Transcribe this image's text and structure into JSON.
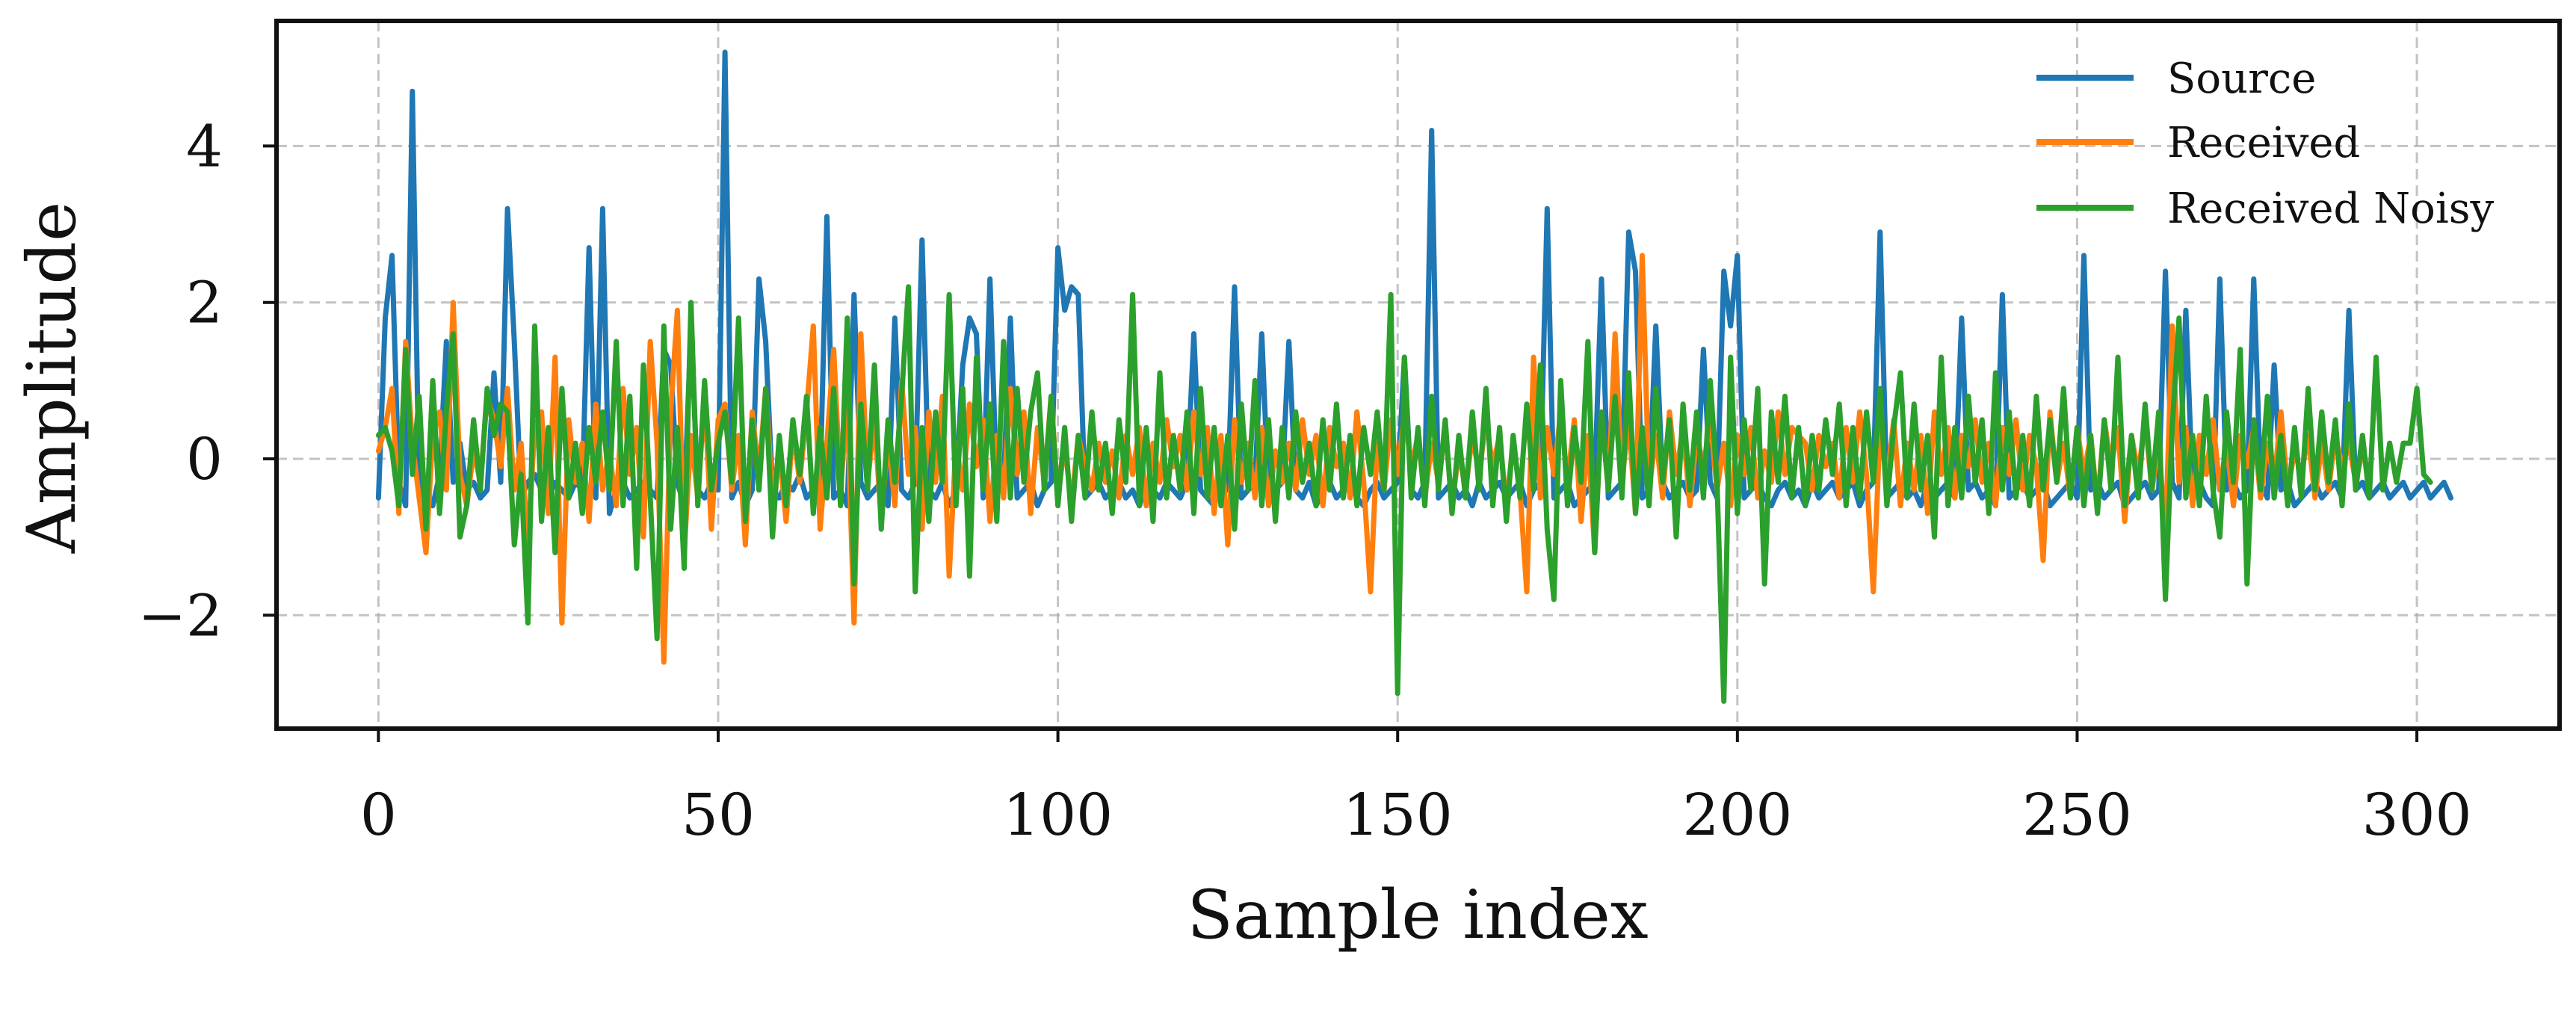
{
  "chart_data": {
    "type": "line",
    "title": "",
    "xlabel": "Sample index",
    "ylabel": "Amplitude",
    "xlim": [
      -15,
      321
    ],
    "ylim": [
      -3.45,
      5.6
    ],
    "xticks": [
      0,
      50,
      100,
      150,
      200,
      250,
      300
    ],
    "yticks": [
      -2,
      0,
      2,
      4
    ],
    "xtick_labels": [
      "0",
      "50",
      "100",
      "150",
      "200",
      "250",
      "300"
    ],
    "ytick_labels": [
      "−2",
      "0",
      "2",
      "4"
    ],
    "grid": true,
    "legend_position": "top-right",
    "x": {
      "start": 0,
      "end": 306,
      "step": 1
    },
    "series": [
      {
        "name": "Source",
        "color": "#1f77b4",
        "values": [
          -0.5,
          1.8,
          2.6,
          -0.3,
          -0.6,
          4.7,
          -0.5,
          -0.4,
          -0.6,
          -0.2,
          1.5,
          -0.3,
          0.2,
          -0.4,
          -0.3,
          -0.5,
          -0.4,
          1.1,
          -0.3,
          3.2,
          1.5,
          -0.5,
          -0.3,
          -0.2,
          -0.4,
          -0.5,
          -0.3,
          -0.4,
          -0.5,
          -0.3,
          -0.4,
          2.7,
          -0.5,
          3.2,
          -0.7,
          -0.4,
          -0.3,
          -0.5,
          -0.4,
          -0.3,
          -0.4,
          -0.5,
          1.4,
          1.2,
          -0.3,
          -0.6,
          1.7,
          -0.4,
          -0.5,
          -0.3,
          -0.4,
          5.2,
          -0.5,
          -0.3,
          -0.6,
          -0.4,
          2.3,
          1.5,
          -0.4,
          -0.5,
          -0.3,
          -0.4,
          -0.2,
          -0.5,
          -0.4,
          -0.3,
          3.1,
          -0.5,
          -0.4,
          -0.6,
          2.1,
          -0.3,
          -0.5,
          -0.4,
          -0.3,
          -0.6,
          1.8,
          -0.4,
          -0.5,
          -0.3,
          2.8,
          -0.4,
          -0.5,
          -0.3,
          -0.6,
          -0.4,
          1.2,
          1.8,
          1.6,
          -0.5,
          2.3,
          -0.4,
          -0.3,
          1.8,
          -0.5,
          -0.4,
          -0.3,
          -0.6,
          -0.4,
          -0.3,
          2.7,
          1.9,
          2.2,
          2.1,
          -0.5,
          -0.4,
          -0.3,
          -0.5,
          -0.4,
          -0.3,
          -0.5,
          -0.4,
          -0.6,
          -0.3,
          -0.4,
          -0.5,
          -0.3,
          -0.4,
          -0.5,
          -0.3,
          1.6,
          -0.4,
          -0.5,
          -0.6,
          -0.3,
          -0.4,
          2.2,
          -0.5,
          -0.4,
          -0.3,
          1.6,
          -0.5,
          -0.4,
          -0.3,
          1.5,
          -0.4,
          -0.5,
          -0.3,
          -0.6,
          -0.4,
          -0.3,
          -0.5,
          -0.4,
          -0.3,
          -0.5,
          -0.6,
          -0.4,
          -0.3,
          -0.5,
          -0.4,
          -0.3,
          1.3,
          -0.4,
          -0.5,
          -0.3,
          4.2,
          -0.5,
          -0.4,
          -0.3,
          -0.5,
          -0.4,
          -0.6,
          -0.3,
          -0.5,
          -0.4,
          -0.3,
          -0.5,
          -0.4,
          -0.3,
          -0.6,
          -0.4,
          -0.3,
          3.2,
          -0.5,
          -0.4,
          -0.3,
          -0.6,
          -0.5,
          -0.4,
          -0.3,
          2.3,
          -0.5,
          -0.4,
          -0.3,
          2.9,
          2.4,
          -0.5,
          -0.4,
          1.7,
          -0.3,
          -0.5,
          -0.4,
          -0.3,
          -0.5,
          -0.4,
          1.4,
          -0.3,
          -0.5,
          2.4,
          1.7,
          2.6,
          -0.5,
          -0.4,
          -0.3,
          -0.5,
          -0.6,
          -0.4,
          -0.3,
          -0.5,
          -0.4,
          -0.6,
          -0.3,
          -0.5,
          -0.4,
          -0.3,
          -0.5,
          -0.4,
          -0.3,
          -0.6,
          -0.4,
          -0.3,
          2.9,
          -0.5,
          -0.4,
          -0.3,
          -0.5,
          -0.4,
          -0.6,
          -0.3,
          -0.5,
          -0.4,
          -0.3,
          -0.5,
          1.8,
          -0.4,
          -0.3,
          -0.5,
          -0.4,
          -0.6,
          2.1,
          -0.5,
          -0.4,
          -0.3,
          -0.5,
          -0.4,
          -0.3,
          -0.6,
          -0.5,
          -0.4,
          -0.3,
          -0.5,
          2.6,
          -0.4,
          -0.3,
          -0.5,
          -0.4,
          -0.3,
          -0.6,
          -0.5,
          -0.4,
          -0.3,
          -0.5,
          -0.4,
          2.4,
          -0.3,
          -0.5,
          1.9,
          -0.4,
          -0.3,
          -0.5,
          -0.6,
          2.3,
          -0.4,
          -0.3,
          -0.5,
          -0.4,
          2.3,
          -0.3,
          -0.5,
          1.2,
          -0.4,
          -0.3,
          -0.6,
          -0.5,
          -0.4,
          -0.3,
          -0.5,
          -0.4,
          -0.3,
          -0.5,
          1.9,
          -0.4,
          -0.3,
          -0.5,
          -0.4,
          -0.3,
          -0.5,
          -0.4,
          -0.3,
          -0.5,
          -0.4,
          -0.3,
          -0.5,
          -0.4,
          -0.3,
          -0.5
        ]
      },
      {
        "name": "Received",
        "color": "#ff7f0e",
        "values": [
          0.1,
          0.4,
          0.9,
          -0.7,
          1.5,
          0.2,
          -0.5,
          -1.2,
          0.3,
          0.6,
          -0.4,
          2.0,
          -0.2,
          -0.6,
          0.1,
          -0.3,
          0.8,
          0.5,
          -0.1,
          0.9,
          -0.4,
          0.2,
          -1.1,
          0.4,
          0.6,
          -0.7,
          1.3,
          -2.1,
          0.5,
          -0.3,
          0.2,
          -0.8,
          0.7,
          -0.4,
          0.1,
          -0.6,
          0.9,
          -0.2,
          0.4,
          -1.0,
          1.5,
          0.2,
          -2.6,
          0.6,
          1.9,
          -1.2,
          0.3,
          -0.5,
          0.8,
          -0.9,
          0.5,
          0.7,
          -0.4,
          0.3,
          -1.1,
          0.6,
          -0.2,
          0.9,
          -0.5,
          0.1,
          -0.8,
          0.4,
          -0.3,
          0.6,
          1.7,
          -0.9,
          0.2,
          1.4,
          -0.4,
          0.7,
          -2.1,
          1.6,
          -0.3,
          0.5,
          -0.8,
          0.3,
          -0.6,
          1.0,
          -0.2,
          0.4,
          -0.9,
          0.6,
          -0.3,
          0.8,
          -1.5,
          0.2,
          -0.4,
          0.7,
          -0.1,
          0.5,
          -0.8,
          0.3,
          -0.5,
          0.9,
          -0.2,
          0.6,
          -0.7,
          0.4,
          -0.3,
          0.8,
          -0.5,
          0.2,
          -0.6,
          0.3,
          -0.1,
          -0.4,
          0.2,
          -0.3,
          0.1,
          -0.5,
          0.3,
          -0.2,
          0.4,
          -0.6,
          0.2,
          -0.3,
          0.5,
          -0.1,
          0.3,
          -0.4,
          0.6,
          -0.2,
          0.4,
          -0.7,
          0.3,
          -1.1,
          0.5,
          -0.3,
          0.2,
          -0.5,
          0.4,
          -0.6,
          0.1,
          -0.3,
          0.2,
          -0.4,
          0.5,
          -0.2,
          0.3,
          -0.6,
          0.4,
          -0.1,
          0.2,
          -0.5,
          0.6,
          -0.3,
          -1.7,
          0.2,
          -0.4,
          0.5,
          -0.2,
          0.6,
          -0.1,
          0.3,
          -0.5,
          0.2,
          -0.3,
          0.4,
          -0.6,
          0.1,
          -0.4,
          0.3,
          -0.2,
          0.5,
          -0.1,
          0.3,
          -0.6,
          0.2,
          -0.4,
          -1.7,
          1.3,
          -0.5,
          0.4,
          -0.2,
          0.6,
          -0.3,
          0.5,
          -0.8,
          0.3,
          -1.2,
          0.6,
          -0.4,
          1.6,
          -0.3,
          0.5,
          -0.7,
          2.6,
          -0.4,
          0.3,
          -0.5,
          0.6,
          -0.2,
          0.4,
          -0.6,
          0.3,
          -0.1,
          0.5,
          -0.4,
          0.2,
          -0.6,
          0.3,
          -0.2,
          0.4,
          -0.5,
          0.1,
          -0.3,
          0.6,
          -0.2,
          0.4,
          0.3,
          0.2,
          -0.4,
          0.3,
          -0.1,
          0.2,
          -0.5,
          0.4,
          -0.3,
          0.6,
          -0.2,
          -1.7,
          0.4,
          -0.3,
          0.5,
          -0.6,
          0.2,
          -0.4,
          0.3,
          -0.7,
          0.6,
          -0.2,
          0.4,
          -0.5,
          0.3,
          -0.1,
          0.5,
          -0.3,
          0.2,
          -0.6,
          0.4,
          -0.2,
          0.5,
          -0.4,
          0.3,
          -0.1,
          -1.3,
          0.6,
          -0.3,
          0.2,
          -0.5,
          0.4,
          -0.2,
          0.3,
          -0.6,
          0.5,
          -0.1,
          0.4,
          -0.8,
          0.3,
          -0.2,
          0.5,
          -0.4,
          0.2,
          -1.0,
          1.7,
          -0.3,
          0.4,
          -0.6,
          0.3,
          -0.2,
          0.5,
          -0.4,
          0.2,
          -0.6,
          0.3,
          -0.1,
          0.4,
          -0.5,
          0.2,
          -0.3,
          0.6,
          -0.4,
          0.1,
          -0.2,
          0.3,
          -0.5,
          0.2,
          -0.4,
          0.3,
          -0.1,
          0.2,
          -0.3,
          0.1,
          -0.2
        ]
      },
      {
        "name": "Received Noisy",
        "color": "#2ca02c",
        "values": [
          0.3,
          0.4,
          0.1,
          -0.6,
          1.4,
          -0.2,
          0.8,
          -0.9,
          1.0,
          -0.7,
          0.6,
          1.6,
          -1.0,
          -0.6,
          0.5,
          -0.4,
          0.9,
          0.3,
          0.7,
          0.6,
          -1.1,
          -0.2,
          -2.1,
          1.7,
          -0.8,
          0.4,
          -1.2,
          0.9,
          -0.5,
          0.2,
          -0.7,
          0.4,
          -0.3,
          0.6,
          -0.4,
          1.5,
          -0.6,
          0.8,
          -1.4,
          1.2,
          -0.5,
          -2.3,
          1.7,
          -0.9,
          0.4,
          -1.4,
          2.0,
          -0.6,
          1.0,
          -0.4,
          0.2,
          0.6,
          -0.3,
          1.8,
          -0.8,
          0.5,
          -0.4,
          0.9,
          -1.0,
          0.3,
          -0.6,
          0.5,
          -0.2,
          0.8,
          -0.7,
          0.4,
          -0.5,
          0.9,
          -0.6,
          1.8,
          -1.6,
          0.7,
          -0.4,
          1.2,
          -0.9,
          0.5,
          -0.3,
          0.8,
          2.2,
          -1.7,
          0.4,
          -0.8,
          0.6,
          -0.3,
          2.1,
          -0.6,
          0.9,
          -1.5,
          1.3,
          -0.4,
          0.7,
          -0.8,
          1.5,
          -0.5,
          0.9,
          -0.3,
          0.6,
          1.1,
          -0.4,
          0.8,
          -0.6,
          0.4,
          -0.8,
          0.3,
          -0.5,
          0.6,
          -0.4,
          0.2,
          -0.7,
          0.5,
          -0.3,
          2.1,
          -0.6,
          0.4,
          -0.8,
          1.1,
          -0.5,
          0.3,
          -0.4,
          0.6,
          -0.7,
          0.9,
          -0.5,
          0.4,
          -0.6,
          0.3,
          -0.9,
          0.7,
          -0.4,
          1.0,
          -0.6,
          0.5,
          -0.8,
          0.4,
          -0.5,
          0.6,
          -0.3,
          0.2,
          -0.6,
          0.5,
          -0.4,
          0.7,
          -0.5,
          0.3,
          -0.6,
          0.4,
          -0.2,
          0.6,
          -0.4,
          2.1,
          -3.0,
          1.3,
          -0.5,
          0.4,
          -0.6,
          0.8,
          -0.4,
          0.5,
          -0.7,
          0.3,
          -0.5,
          0.6,
          -0.4,
          0.9,
          -0.6,
          0.4,
          -0.8,
          0.3,
          -0.5,
          0.7,
          -0.4,
          1.2,
          -0.9,
          -1.8,
          1.0,
          -0.6,
          0.4,
          -0.3,
          1.5,
          -1.2,
          0.6,
          -0.4,
          0.8,
          -0.5,
          1.1,
          -0.7,
          0.4,
          -0.6,
          0.9,
          -0.3,
          0.5,
          -1.0,
          0.7,
          -0.4,
          0.6,
          -0.5,
          1.0,
          -0.3,
          -3.1,
          1.3,
          -0.7,
          0.5,
          -0.4,
          0.9,
          -1.6,
          0.6,
          -0.3,
          0.8,
          -0.5,
          0.4,
          -0.6,
          0.3,
          -0.4,
          0.5,
          -0.2,
          0.7,
          -0.6,
          0.4,
          -0.5,
          0.6,
          -0.3,
          0.9,
          -0.6,
          0.4,
          1.1,
          -0.5,
          0.7,
          -0.4,
          0.3,
          -1.0,
          1.3,
          -0.6,
          0.4,
          -0.5,
          0.8,
          -0.3,
          0.5,
          -0.7,
          1.1,
          -0.4,
          0.6,
          -0.5,
          0.3,
          -0.6,
          0.8,
          -0.4,
          0.5,
          -0.3,
          0.9,
          -0.5,
          0.4,
          -0.6,
          0.3,
          -0.7,
          0.5,
          -0.4,
          1.3,
          -0.6,
          0.3,
          -0.5,
          0.7,
          -0.4,
          0.6,
          -1.8,
          0.4,
          1.8,
          -0.5,
          0.3,
          -0.6,
          0.8,
          -0.4,
          -1.0,
          0.6,
          -0.3,
          1.4,
          -1.6,
          0.5,
          -0.4,
          0.8,
          -0.5,
          0.3,
          -0.6,
          0.4,
          -0.5,
          0.9,
          -0.4,
          0.6,
          -0.3,
          0.5,
          -0.6,
          0.7,
          -0.4,
          0.3,
          -0.5,
          1.3,
          -0.4,
          0.2,
          -0.3,
          0.2,
          0.2,
          0.9,
          -0.2,
          -0.3
        ]
      }
    ]
  }
}
